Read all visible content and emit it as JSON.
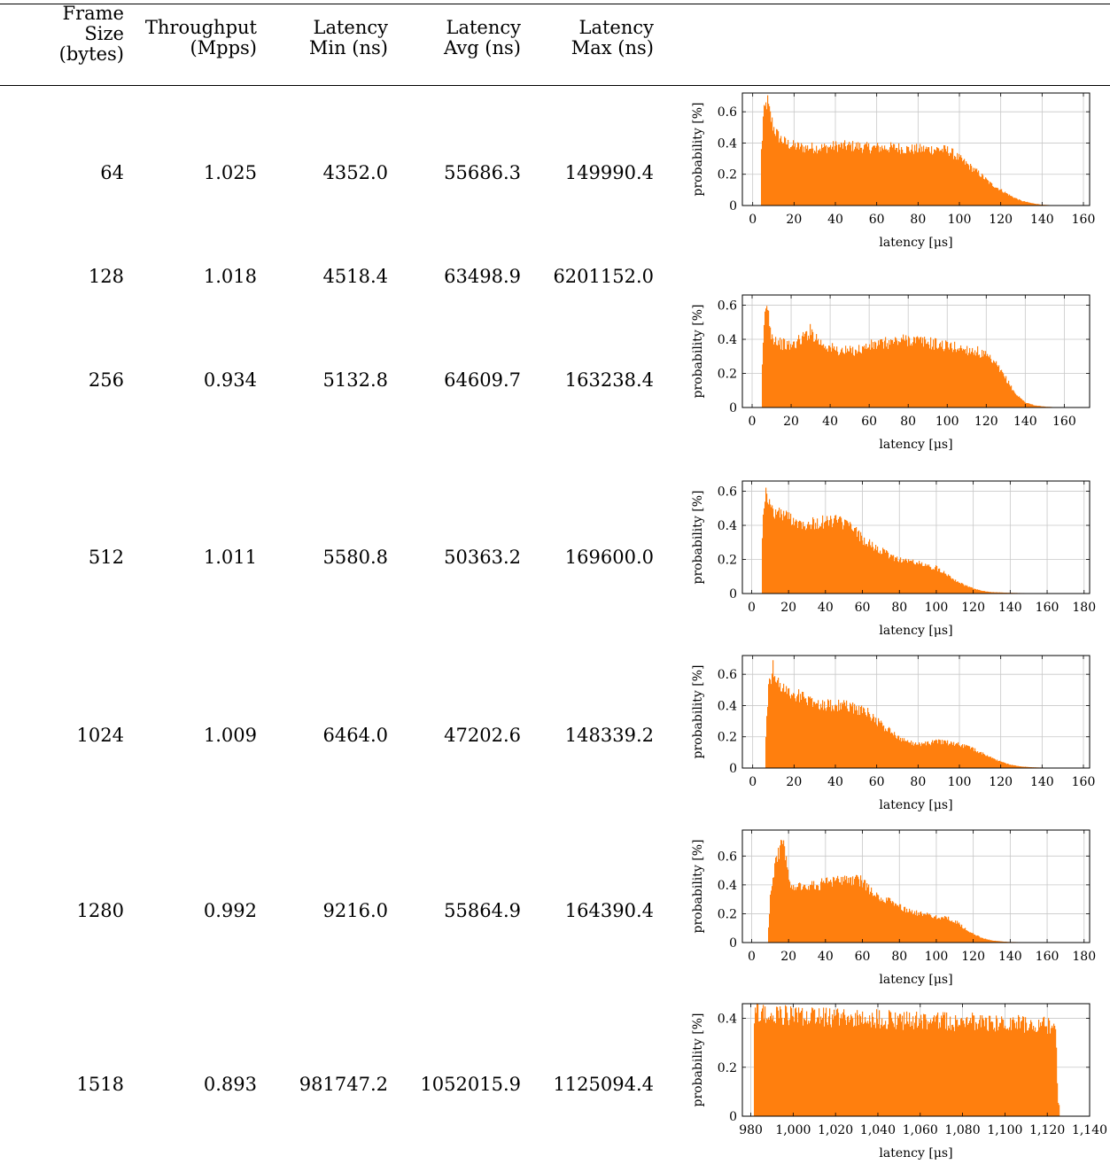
{
  "table": {
    "headers": [
      [
        "Frame",
        "Size",
        "(bytes)"
      ],
      [
        "Throughput",
        "(Mpps)"
      ],
      [
        "Latency",
        "Min (ns)"
      ],
      [
        "Latency",
        "Avg (ns)"
      ],
      [
        "Latency",
        "Max (ns)"
      ]
    ],
    "rows": [
      [
        "64",
        "1.025",
        "4352.0",
        "55686.3",
        "149990.4"
      ],
      [
        "128",
        "1.018",
        "4518.4",
        "63498.9",
        "6201152.0"
      ],
      [
        "256",
        "0.934",
        "5132.8",
        "64609.7",
        "163238.4"
      ],
      [
        "512",
        "1.011",
        "5580.8",
        "50363.2",
        "169600.0"
      ],
      [
        "1024",
        "1.009",
        "6464.0",
        "47202.6",
        "148339.2"
      ],
      [
        "1280",
        "0.992",
        "9216.0",
        "55864.9",
        "164390.4"
      ],
      [
        "1518",
        "0.893",
        "981747.2",
        "1052015.9",
        "1125094.4"
      ]
    ]
  },
  "colors": {
    "bar": "#ff7f0e",
    "grid": "#c8c8c8",
    "axis": "#000000"
  },
  "chart_data": [
    {
      "type": "bar",
      "frame_size": "64",
      "xlabel": "latency [μs]",
      "ylabel": "probability [%]",
      "xlim": [
        -5,
        163
      ],
      "ylim": [
        0,
        0.72
      ],
      "grid": true,
      "xticks": [
        0,
        20,
        40,
        60,
        80,
        100,
        120,
        140,
        160
      ],
      "xtick_labels": [
        "0",
        "20",
        "40",
        "60",
        "80",
        "100",
        "120",
        "140",
        "160"
      ],
      "yticks": [
        0,
        0.2,
        0.4,
        0.6
      ],
      "ytick_labels": [
        "0",
        "0.2",
        "0.4",
        "0.6"
      ],
      "x": [
        4.4,
        5,
        6,
        7,
        8,
        9,
        10,
        12,
        14,
        16,
        20,
        25,
        30,
        35,
        40,
        45,
        50,
        55,
        60,
        65,
        70,
        75,
        80,
        85,
        90,
        95,
        100,
        105,
        110,
        115,
        120,
        125,
        130,
        135,
        140,
        145,
        150
      ],
      "values": [
        0.35,
        0.55,
        0.62,
        0.67,
        0.6,
        0.55,
        0.5,
        0.45,
        0.42,
        0.4,
        0.38,
        0.37,
        0.37,
        0.37,
        0.38,
        0.38,
        0.38,
        0.37,
        0.37,
        0.37,
        0.37,
        0.36,
        0.36,
        0.36,
        0.36,
        0.35,
        0.3,
        0.25,
        0.2,
        0.14,
        0.1,
        0.06,
        0.03,
        0.015,
        0.005,
        0.002,
        0.001
      ]
    },
    {
      "type": "bar",
      "frame_size": "256",
      "xlabel": "latency [μs]",
      "ylabel": "probability [%]",
      "xlim": [
        -5,
        173
      ],
      "ylim": [
        0,
        0.66
      ],
      "grid": true,
      "xticks": [
        0,
        20,
        40,
        60,
        80,
        100,
        120,
        140,
        160
      ],
      "xtick_labels": [
        "0",
        "20",
        "40",
        "60",
        "80",
        "100",
        "120",
        "140",
        "160"
      ],
      "yticks": [
        0,
        0.2,
        0.4,
        0.6
      ],
      "ytick_labels": [
        "0",
        "0.2",
        "0.4",
        "0.6"
      ],
      "x": [
        5.1,
        6,
        7,
        8,
        9,
        10,
        12,
        14,
        16,
        20,
        25,
        30,
        35,
        40,
        45,
        50,
        55,
        60,
        65,
        70,
        75,
        80,
        85,
        90,
        95,
        100,
        105,
        110,
        115,
        120,
        125,
        130,
        135,
        140,
        145,
        150,
        155,
        160,
        163
      ],
      "values": [
        0.2,
        0.45,
        0.6,
        0.57,
        0.5,
        0.42,
        0.4,
        0.38,
        0.37,
        0.36,
        0.4,
        0.45,
        0.38,
        0.35,
        0.33,
        0.33,
        0.34,
        0.36,
        0.37,
        0.38,
        0.39,
        0.4,
        0.39,
        0.38,
        0.37,
        0.36,
        0.35,
        0.34,
        0.33,
        0.3,
        0.25,
        0.17,
        0.08,
        0.03,
        0.012,
        0.005,
        0.002,
        0.001,
        0.001
      ]
    },
    {
      "type": "bar",
      "frame_size": "512",
      "xlabel": "latency [μs]",
      "ylabel": "probability [%]",
      "xlim": [
        -5,
        183
      ],
      "ylim": [
        0,
        0.66
      ],
      "grid": true,
      "xticks": [
        0,
        20,
        40,
        60,
        80,
        100,
        120,
        140,
        160,
        180
      ],
      "xtick_labels": [
        "0",
        "20",
        "40",
        "60",
        "80",
        "100",
        "120",
        "140",
        "160",
        "180"
      ],
      "yticks": [
        0,
        0.2,
        0.4,
        0.6
      ],
      "ytick_labels": [
        "0",
        "0.2",
        "0.4",
        "0.6"
      ],
      "x": [
        5.6,
        6,
        7,
        8,
        9,
        10,
        12,
        15,
        20,
        25,
        30,
        35,
        40,
        45,
        50,
        55,
        60,
        65,
        70,
        75,
        80,
        85,
        90,
        95,
        100,
        105,
        110,
        115,
        120,
        125,
        130,
        140,
        150,
        160,
        170
      ],
      "values": [
        0.25,
        0.45,
        0.57,
        0.59,
        0.55,
        0.5,
        0.48,
        0.47,
        0.45,
        0.42,
        0.41,
        0.41,
        0.42,
        0.43,
        0.41,
        0.38,
        0.32,
        0.28,
        0.25,
        0.22,
        0.2,
        0.19,
        0.18,
        0.16,
        0.15,
        0.12,
        0.08,
        0.05,
        0.03,
        0.015,
        0.008,
        0.004,
        0.002,
        0.001,
        0.001
      ]
    },
    {
      "type": "bar",
      "frame_size": "1024",
      "xlabel": "latency [μs]",
      "ylabel": "probability [%]",
      "xlim": [
        -5,
        163
      ],
      "ylim": [
        0,
        0.72
      ],
      "grid": true,
      "xticks": [
        0,
        20,
        40,
        60,
        80,
        100,
        120,
        140,
        160
      ],
      "xtick_labels": [
        "0",
        "20",
        "40",
        "60",
        "80",
        "100",
        "120",
        "140",
        "160"
      ],
      "yticks": [
        0,
        0.2,
        0.4,
        0.6
      ],
      "ytick_labels": [
        "0",
        "0.2",
        "0.4",
        "0.6"
      ],
      "x": [
        6.5,
        7,
        8,
        9,
        10,
        11,
        12,
        14,
        16,
        18,
        20,
        25,
        30,
        35,
        40,
        45,
        50,
        55,
        60,
        65,
        70,
        75,
        80,
        85,
        90,
        95,
        100,
        105,
        110,
        115,
        120,
        125,
        130,
        135,
        140,
        145,
        148
      ],
      "values": [
        0.2,
        0.4,
        0.55,
        0.6,
        0.64,
        0.58,
        0.55,
        0.52,
        0.5,
        0.48,
        0.47,
        0.45,
        0.42,
        0.4,
        0.4,
        0.4,
        0.38,
        0.36,
        0.3,
        0.25,
        0.2,
        0.17,
        0.15,
        0.16,
        0.17,
        0.16,
        0.15,
        0.13,
        0.1,
        0.07,
        0.04,
        0.02,
        0.01,
        0.005,
        0.003,
        0.002,
        0.001
      ]
    },
    {
      "type": "bar",
      "frame_size": "1280",
      "xlabel": "latency [μs]",
      "ylabel": "probability [%]",
      "xlim": [
        -5,
        183
      ],
      "ylim": [
        0,
        0.78
      ],
      "grid": true,
      "xticks": [
        0,
        20,
        40,
        60,
        80,
        100,
        120,
        140,
        160,
        180
      ],
      "xtick_labels": [
        "0",
        "20",
        "40",
        "60",
        "80",
        "100",
        "120",
        "140",
        "160",
        "180"
      ],
      "yticks": [
        0,
        0.2,
        0.4,
        0.6
      ],
      "ytick_labels": [
        "0",
        "0.2",
        "0.4",
        "0.6"
      ],
      "x": [
        9.2,
        10,
        12,
        14,
        16,
        17,
        18,
        20,
        22,
        25,
        30,
        35,
        40,
        45,
        50,
        55,
        60,
        65,
        70,
        75,
        80,
        85,
        90,
        95,
        100,
        105,
        110,
        115,
        120,
        125,
        130,
        135,
        140,
        150,
        160,
        164
      ],
      "values": [
        0.1,
        0.3,
        0.5,
        0.6,
        0.68,
        0.7,
        0.6,
        0.45,
        0.4,
        0.4,
        0.39,
        0.4,
        0.41,
        0.42,
        0.43,
        0.44,
        0.42,
        0.35,
        0.3,
        0.28,
        0.25,
        0.22,
        0.2,
        0.19,
        0.18,
        0.17,
        0.15,
        0.1,
        0.06,
        0.03,
        0.015,
        0.008,
        0.004,
        0.002,
        0.001,
        0.001
      ]
    },
    {
      "type": "bar",
      "frame_size": "1518",
      "xlabel": "latency [μs]",
      "ylabel": "probability [%]",
      "xlim": [
        976,
        1140
      ],
      "ylim": [
        0,
        0.46
      ],
      "grid": true,
      "xticks": [
        980,
        1000,
        1020,
        1040,
        1060,
        1080,
        1100,
        1120,
        1140
      ],
      "xtick_labels": [
        "980",
        "1,000",
        "1,020",
        "1,040",
        "1,060",
        "1,080",
        "1,100",
        "1,120",
        "1,140"
      ],
      "yticks": [
        0,
        0.2,
        0.4
      ],
      "ytick_labels": [
        "0",
        "0.2",
        "0.4"
      ],
      "x": [
        981.7,
        985,
        995,
        1005,
        1015,
        1025,
        1035,
        1045,
        1055,
        1065,
        1075,
        1085,
        1095,
        1105,
        1115,
        1124,
        1125
      ],
      "values": [
        0.42,
        0.42,
        0.415,
        0.41,
        0.405,
        0.4,
        0.4,
        0.395,
        0.39,
        0.39,
        0.385,
        0.385,
        0.38,
        0.38,
        0.375,
        0.37,
        0.05
      ]
    }
  ]
}
